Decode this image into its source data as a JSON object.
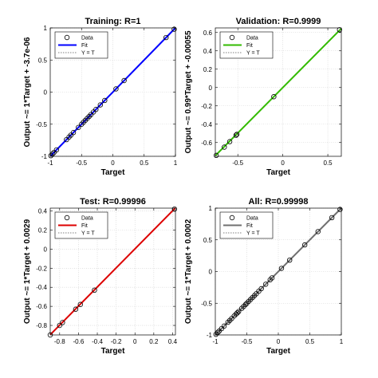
{
  "chart_data": [
    {
      "type": "scatter",
      "title": "Training: R=1",
      "xlabel": "Target",
      "ylabel": "Output ~= 1*Target + -3.7e-06",
      "xlim": [
        -1,
        1
      ],
      "ylim": [
        -1,
        1
      ],
      "xticks": [
        -1,
        -0.5,
        0,
        0.5,
        1
      ],
      "yticks": [
        -1,
        -0.5,
        0,
        0.5,
        1
      ],
      "xtick_labels": [
        "-1",
        "-0.5",
        "0",
        "0.5",
        "1"
      ],
      "ytick_labels": [
        "-1",
        "-0.5",
        "0",
        "0.5",
        "1"
      ],
      "fit_color": "#0000ff",
      "fit": {
        "slope": 1,
        "intercept": -3.7e-06
      },
      "legend": [
        "Data",
        "Fit",
        "Y = T"
      ],
      "legend_position": "top-left",
      "points": [
        [
          -0.99,
          -0.99
        ],
        [
          -0.96,
          -0.96
        ],
        [
          -0.94,
          -0.94
        ],
        [
          -0.9,
          -0.9
        ],
        [
          -0.74,
          -0.74
        ],
        [
          -0.7,
          -0.7
        ],
        [
          -0.67,
          -0.67
        ],
        [
          -0.63,
          -0.63
        ],
        [
          -0.55,
          -0.55
        ],
        [
          -0.5,
          -0.5
        ],
        [
          -0.47,
          -0.47
        ],
        [
          -0.44,
          -0.44
        ],
        [
          -0.41,
          -0.41
        ],
        [
          -0.38,
          -0.38
        ],
        [
          -0.35,
          -0.35
        ],
        [
          -0.31,
          -0.31
        ],
        [
          -0.27,
          -0.27
        ],
        [
          -0.2,
          -0.2
        ],
        [
          -0.13,
          -0.13
        ],
        [
          0.05,
          0.05
        ],
        [
          0.18,
          0.18
        ],
        [
          0.85,
          0.85
        ],
        [
          0.98,
          0.98
        ]
      ]
    },
    {
      "type": "scatter",
      "title": "Validation: R=0.9999",
      "xlabel": "Target",
      "ylabel": "Output ~= 0.99*Target + -0.00055",
      "xlim": [
        -0.75,
        0.65
      ],
      "ylim": [
        -0.75,
        0.65
      ],
      "xticks": [
        -0.5,
        0,
        0.5
      ],
      "yticks": [
        -0.6,
        -0.4,
        -0.2,
        0,
        0.2,
        0.4,
        0.6
      ],
      "xtick_labels": [
        "-0.5",
        "0",
        "0.5"
      ],
      "ytick_labels": [
        "-0.6",
        "-0.4",
        "-0.2",
        "0",
        "0.2",
        "0.4",
        "0.6"
      ],
      "fit_color": "#33bb00",
      "fit": {
        "slope": 0.99,
        "intercept": -0.00055
      },
      "legend": [
        "Data",
        "Fit",
        "Y = T"
      ],
      "legend_position": "top-left",
      "points": [
        [
          -0.74,
          -0.74
        ],
        [
          -0.65,
          -0.65
        ],
        [
          -0.59,
          -0.59
        ],
        [
          -0.52,
          -0.52
        ],
        [
          -0.51,
          -0.51
        ],
        [
          -0.1,
          -0.1
        ],
        [
          0.63,
          0.63
        ]
      ]
    },
    {
      "type": "scatter",
      "title": "Test: R=0.99996",
      "xlabel": "Target",
      "ylabel": "Output ~= 1*Target + 0.0029",
      "xlim": [
        -0.9,
        0.43
      ],
      "ylim": [
        -0.9,
        0.43
      ],
      "xticks": [
        -0.8,
        -0.6,
        -0.4,
        -0.2,
        0,
        0.2,
        0.4
      ],
      "yticks": [
        -0.8,
        -0.6,
        -0.4,
        -0.2,
        0,
        0.2,
        0.4
      ],
      "xtick_labels": [
        "-0.8",
        "-0.6",
        "-0.4",
        "-0.2",
        "0",
        "0.2",
        "0.4"
      ],
      "ytick_labels": [
        "-0.8",
        "-0.6",
        "-0.4",
        "-0.2",
        "0",
        "0.2",
        "0.4"
      ],
      "fit_color": "#dd0000",
      "fit": {
        "slope": 1,
        "intercept": 0.0029
      },
      "legend": [
        "Data",
        "Fit",
        "Y = T"
      ],
      "legend_position": "top-left",
      "points": [
        [
          -0.9,
          -0.9
        ],
        [
          -0.8,
          -0.8
        ],
        [
          -0.77,
          -0.77
        ],
        [
          -0.63,
          -0.63
        ],
        [
          -0.58,
          -0.58
        ],
        [
          -0.43,
          -0.43
        ],
        [
          0.42,
          0.42
        ]
      ]
    },
    {
      "type": "scatter",
      "title": "All: R=0.99998",
      "xlabel": "Target",
      "ylabel": "Output ~= 1*Target + 0.0002",
      "xlim": [
        -1,
        1
      ],
      "ylim": [
        -1,
        1
      ],
      "xticks": [
        -1,
        -0.5,
        0,
        0.5,
        1
      ],
      "yticks": [
        -1,
        -0.5,
        0,
        0.5,
        1
      ],
      "xtick_labels": [
        "-1",
        "-0.5",
        "0",
        "0.5",
        "1"
      ],
      "ytick_labels": [
        "-1",
        "-0.5",
        "0",
        "0.5",
        "1"
      ],
      "fit_color": "#707070",
      "fit": {
        "slope": 1,
        "intercept": 0.0002
      },
      "legend": [
        "Data",
        "Fit",
        "Y = T"
      ],
      "legend_position": "top-left",
      "points": [
        [
          -0.99,
          -0.99
        ],
        [
          -0.96,
          -0.96
        ],
        [
          -0.94,
          -0.94
        ],
        [
          -0.9,
          -0.9
        ],
        [
          -0.86,
          -0.86
        ],
        [
          -0.8,
          -0.8
        ],
        [
          -0.77,
          -0.77
        ],
        [
          -0.74,
          -0.74
        ],
        [
          -0.7,
          -0.7
        ],
        [
          -0.67,
          -0.67
        ],
        [
          -0.65,
          -0.65
        ],
        [
          -0.63,
          -0.63
        ],
        [
          -0.58,
          -0.58
        ],
        [
          -0.55,
          -0.55
        ],
        [
          -0.52,
          -0.52
        ],
        [
          -0.5,
          -0.5
        ],
        [
          -0.47,
          -0.47
        ],
        [
          -0.44,
          -0.44
        ],
        [
          -0.41,
          -0.41
        ],
        [
          -0.38,
          -0.38
        ],
        [
          -0.35,
          -0.35
        ],
        [
          -0.31,
          -0.31
        ],
        [
          -0.27,
          -0.27
        ],
        [
          -0.2,
          -0.2
        ],
        [
          -0.13,
          -0.13
        ],
        [
          -0.1,
          -0.1
        ],
        [
          0.05,
          0.05
        ],
        [
          0.18,
          0.18
        ],
        [
          0.42,
          0.42
        ],
        [
          0.63,
          0.63
        ],
        [
          0.85,
          0.85
        ],
        [
          0.98,
          0.98
        ]
      ]
    }
  ]
}
